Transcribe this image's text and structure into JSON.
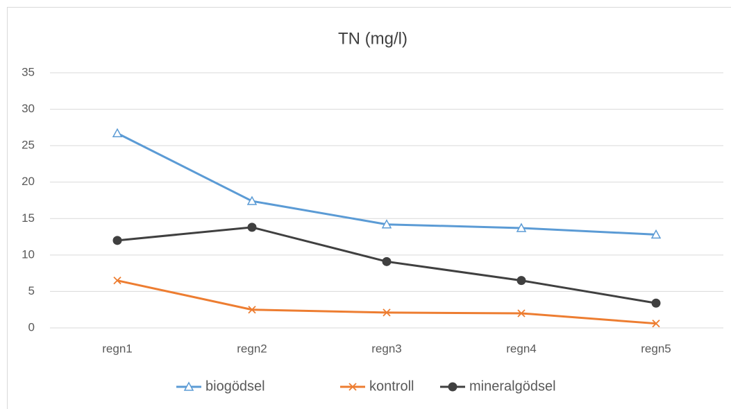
{
  "chart_data": {
    "type": "line",
    "title": "TN (mg/l)",
    "categories": [
      "regn1",
      "regn2",
      "regn3",
      "regn4",
      "regn5"
    ],
    "series": [
      {
        "name": "biogödsel",
        "color": "#5b9bd5",
        "marker": "triangle",
        "values": [
          26.7,
          17.4,
          14.2,
          13.7,
          12.8
        ]
      },
      {
        "name": "kontroll",
        "color": "#ed7d31",
        "marker": "x",
        "values": [
          6.5,
          2.5,
          2.1,
          2.0,
          0.6
        ]
      },
      {
        "name": "mineralgödsel",
        "color": "#404040",
        "marker": "circle",
        "values": [
          12.0,
          13.8,
          9.1,
          6.5,
          3.4
        ]
      }
    ],
    "ylim": [
      0,
      35
    ],
    "yticks": [
      0,
      5,
      10,
      15,
      20,
      25,
      30,
      35
    ],
    "grid": true,
    "legend": "bottom"
  }
}
